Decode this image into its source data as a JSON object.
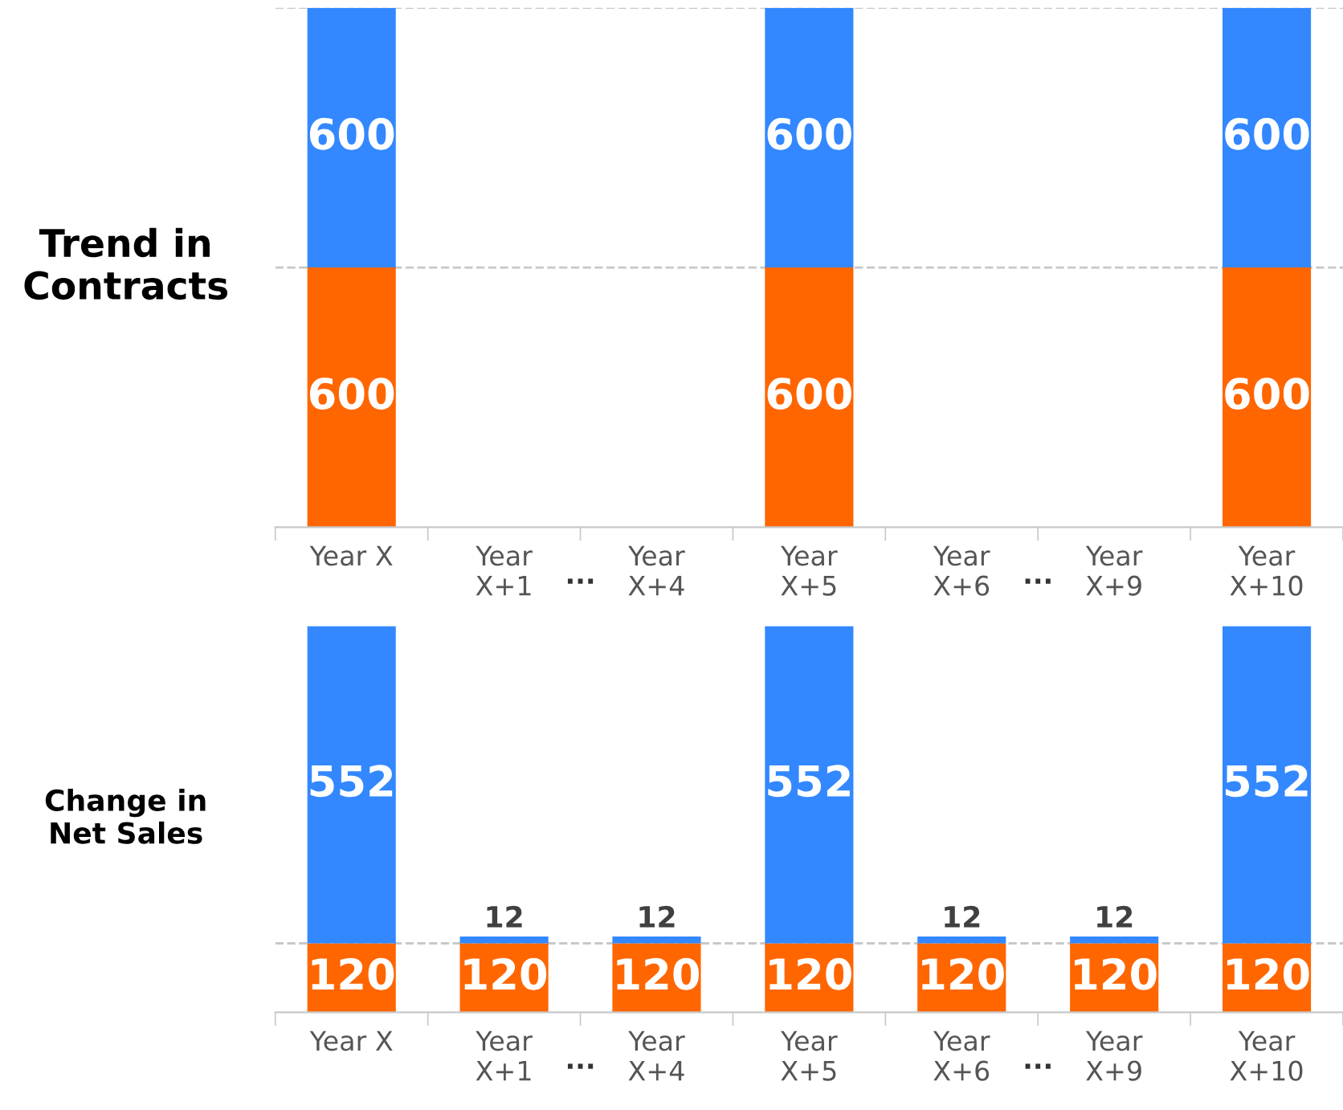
{
  "chart_data": [
    {
      "type": "bar",
      "title": "Trend in\nContracts",
      "stacked": true,
      "data_labels": true,
      "categories": [
        "Year X",
        "Year\nX+1",
        "Year\nX+4",
        "Year\nX+5",
        "Year\nX+6",
        "Year\nX+9",
        "Year\nX+10"
      ],
      "series": [
        {
          "color": "#ff6600",
          "values": [
            600,
            null,
            null,
            600,
            null,
            null,
            600
          ]
        },
        {
          "color": "#3388ff",
          "values": [
            600,
            null,
            null,
            600,
            null,
            null,
            600
          ]
        }
      ],
      "ref_lines": [
        {
          "axis": "y",
          "value": 600,
          "color": "#c8c8c8",
          "line_style": "dashed"
        },
        {
          "axis": "y",
          "value": 1200,
          "color": "#c8c8c8",
          "line_style": "dashed"
        }
      ],
      "annotations": [
        "...",
        "..."
      ],
      "tick_labels": "x",
      "grid": false,
      "legend": false
    },
    {
      "type": "bar",
      "title": "Change in\nNet Sales",
      "stacked": true,
      "data_labels": true,
      "categories": [
        "Year X",
        "Year\nX+1",
        "Year\nX+4",
        "Year\nX+5",
        "Year\nX+6",
        "Year\nX+9",
        "Year\nX+10"
      ],
      "series": [
        {
          "color": "#ff6600",
          "values": [
            120,
            120,
            120,
            120,
            120,
            120,
            120
          ]
        },
        {
          "color": "#3388ff",
          "values": [
            552,
            12,
            12,
            552,
            12,
            12,
            552
          ]
        }
      ],
      "ref_lines": [
        {
          "axis": "y",
          "value": 120,
          "color": "#c8c8c8",
          "line_style": "dashed"
        }
      ],
      "annotations": [
        "...",
        "..."
      ],
      "tick_labels": "x",
      "grid": false,
      "legend": false
    }
  ]
}
